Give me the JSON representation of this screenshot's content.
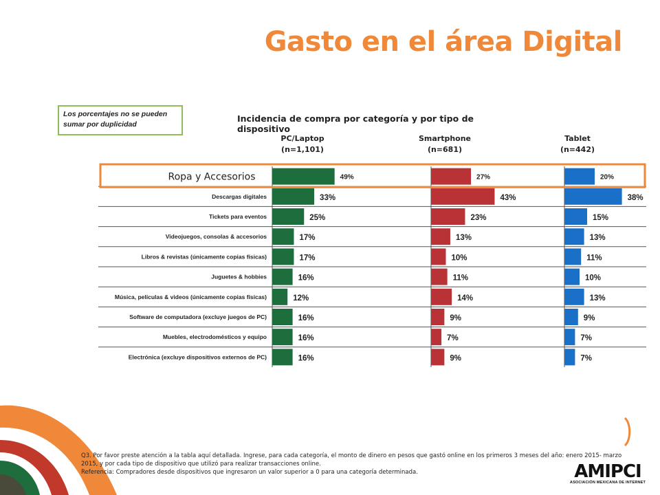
{
  "page": {
    "title": "Gasto en el área Digital",
    "title_color": "#f0883a",
    "note": "Los porcentajes no se pueden sumar por duplicidad"
  },
  "chart_data": {
    "type": "bar",
    "orientation": "horizontal",
    "title": "Incidencia de compra por categoría y por tipo de dispositivo",
    "categories": [
      "Ropa y Accesorios",
      "Descargas digitales",
      "Tickets para eventos",
      "Videojuegos, consolas & accesorios",
      "Libros & revistas (únicamente copias físicas)",
      "Juguetes & hobbies",
      "Música, películas & videos (únicamente copias físicas)",
      "Software de computadora (excluye juegos de PC)",
      "Muebles, electrodomésticos y equipo",
      "Electrónica (excluye dispositivos externos de PC)"
    ],
    "highlighted_category": "Ropa y Accesorios",
    "series": [
      {
        "name": "PC/Laptop",
        "sample": "(n=1,101)",
        "color": "#1d6e3c",
        "values": [
          49,
          33,
          25,
          17,
          17,
          16,
          12,
          16,
          16,
          16
        ],
        "labels": [
          "49%",
          "33%",
          "25%",
          "17%",
          "17%",
          "16%",
          "12%",
          "16%",
          "16%",
          "16%"
        ]
      },
      {
        "name": "Smartphone",
        "sample": "(n=681)",
        "color": "#b83236",
        "values": [
          27,
          43,
          23,
          13,
          10,
          11,
          14,
          9,
          7,
          9
        ],
        "labels": [
          "27%",
          "43%",
          "23%",
          "13%",
          "10%",
          "11%",
          "14%",
          "9%",
          "7%",
          "9%"
        ]
      },
      {
        "name": "Tablet",
        "sample": "(n=442)",
        "color": "#1a6fc7",
        "values": [
          20,
          38,
          15,
          13,
          11,
          10,
          13,
          9,
          7,
          7
        ],
        "labels": [
          "20%",
          "38%",
          "15%",
          "13%",
          "11%",
          "10%",
          "13%",
          "9%",
          "7%",
          "7%"
        ]
      }
    ],
    "highlight_color": "#f0883a",
    "legend": "column-headers"
  },
  "footnote": {
    "q3": "Q3. Por favor preste atención a la tabla aquí detallada. Ingrese, para cada categoría, el monto de dinero en pesos que gastó online en los primeros 3 meses del año: enero 2015- marzo 2015, y por cada tipo de dispositivo que utilizó para realizar transacciones online.",
    "referencia": "Referencia: Compradores desde dispositivos que ingresaron un valor superior a 0 para una categoría determinada."
  },
  "logo": {
    "name": "AMIPCI",
    "subtitle": "ASOCIACIÓN MEXICANA DE INTERNET"
  },
  "colors": {
    "decor_orange": "#f0883a",
    "decor_red": "#c0392b",
    "decor_green": "#1d6e3c",
    "decor_dark": "#4a4a3a"
  }
}
